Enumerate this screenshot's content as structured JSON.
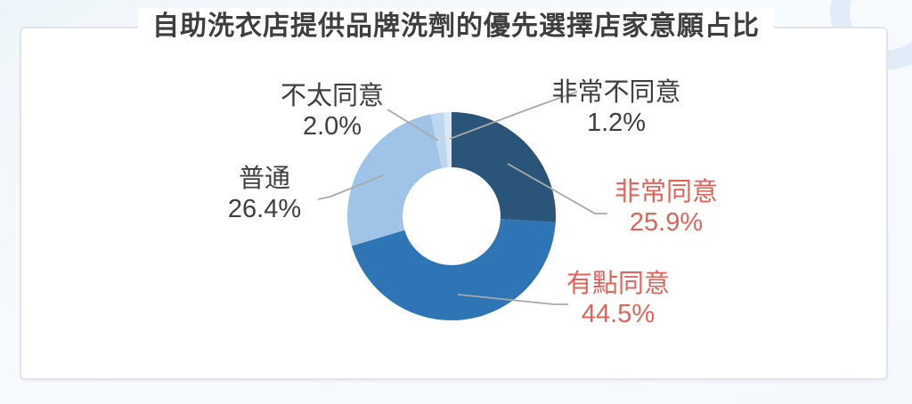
{
  "card": {
    "title": "自助洗衣店提供品牌洗劑的優先選擇店家意願占比"
  },
  "chart_data": {
    "type": "pie",
    "subtype": "donut",
    "title": "自助洗衣店提供品牌洗劑的優先選擇店家意願占比",
    "unit": "%",
    "direction": "clockwise",
    "start_angle_deg": 0,
    "hole_ratio": 0.47,
    "legend_position": "callout-labels",
    "leader_line_color": "#a9a9a9",
    "segments": [
      {
        "label": "非常同意",
        "value": 25.9,
        "display": "25.9%",
        "color": "#2a5478",
        "label_color": "#e0635c"
      },
      {
        "label": "有點同意",
        "value": 44.5,
        "display": "44.5%",
        "color": "#2e75b6",
        "label_color": "#e0635c"
      },
      {
        "label": "普通",
        "value": 26.4,
        "display": "26.4%",
        "color": "#9fc4e7",
        "label_color": "#3f3f3f"
      },
      {
        "label": "不太同意",
        "value": 2.0,
        "display": "2.0%",
        "color": "#bdd7ee",
        "label_color": "#3f3f3f"
      },
      {
        "label": "非常不同意",
        "value": 1.2,
        "display": "1.2%",
        "color": "#dae8f5",
        "label_color": "#3f3f3f"
      }
    ]
  }
}
